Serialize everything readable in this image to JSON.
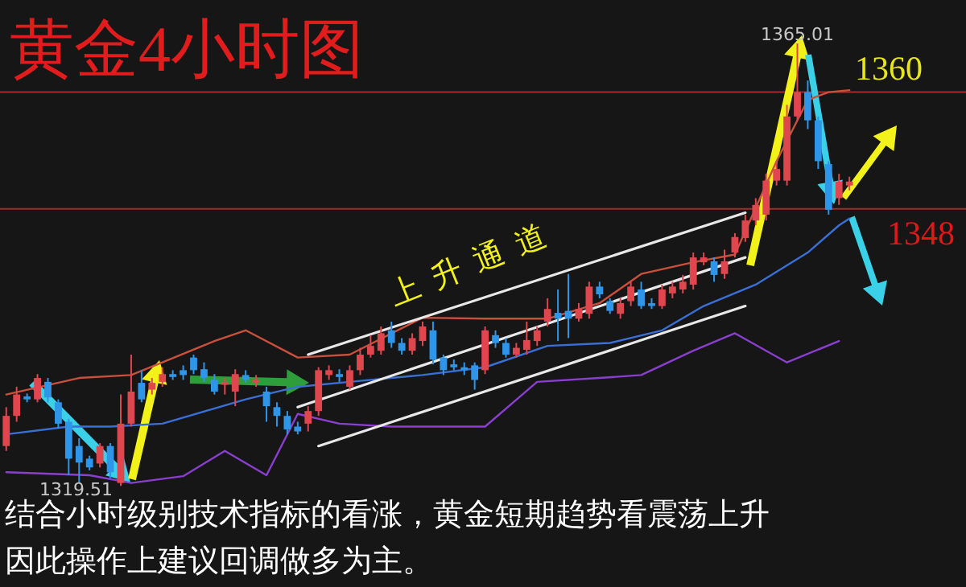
{
  "chart_data": {
    "type": "candlestick",
    "title": "黄金4小时图",
    "categories": [
      null,
      null,
      null,
      null,
      null,
      null,
      null,
      null,
      null,
      null,
      null,
      null,
      null,
      null,
      null,
      null,
      null,
      null,
      null,
      null,
      null,
      null,
      null,
      null,
      null,
      null,
      null,
      null,
      null,
      null,
      null,
      null,
      null,
      null,
      null,
      null,
      null,
      null,
      null,
      null,
      null,
      null,
      null,
      null,
      null,
      null,
      null,
      null,
      null,
      null,
      null,
      null,
      null,
      null,
      null,
      null,
      null,
      null,
      null,
      null,
      null,
      null,
      null,
      null,
      null,
      null,
      null,
      null,
      null,
      null,
      null,
      null,
      null,
      null,
      null,
      null,
      null,
      null,
      null,
      null,
      null,
      null
    ],
    "ohlc": [
      [
        1323.6,
        1327.6,
        1323.1,
        1326.7
      ],
      [
        1326.7,
        1329.7,
        1326.1,
        1328.9
      ],
      [
        1328.7,
        1329.0,
        1328.1,
        1328.4
      ],
      [
        1328.4,
        1331.0,
        1328.1,
        1330.6
      ],
      [
        1330.2,
        1330.6,
        1328.1,
        1328.6
      ],
      [
        1328.1,
        1328.4,
        1325.4,
        1325.9
      ],
      [
        1326.1,
        1326.4,
        1320.6,
        1322.3
      ],
      [
        1323.6,
        1324.4,
        1319.8,
        1321.9
      ],
      [
        1322.3,
        1322.6,
        1321.1,
        1321.4
      ],
      [
        1321.8,
        1323.9,
        1321.4,
        1323.6
      ],
      [
        1323.6,
        1323.9,
        1320.3,
        1320.9
      ],
      [
        1319.8,
        1328.9,
        1319.51,
        1325.9
      ],
      [
        1325.9,
        1333.0,
        1325.6,
        1329.2
      ],
      [
        1330.1,
        1331.4,
        1328.1,
        1328.4
      ],
      [
        1329.4,
        1330.6,
        1328.9,
        1330.1
      ],
      [
        1330.2,
        1331.7,
        1329.7,
        1331.0
      ],
      [
        1331.0,
        1331.4,
        1330.4,
        1330.7
      ],
      [
        1331.4,
        1331.9,
        1330.4,
        1330.9
      ],
      [
        1332.7,
        1333.0,
        1331.0,
        1331.4
      ],
      [
        1331.5,
        1332.2,
        1330.2,
        1330.6
      ],
      [
        1330.4,
        1331.0,
        1328.9,
        1329.2
      ],
      [
        1329.9,
        1330.6,
        1328.9,
        1330.2
      ],
      [
        1329.2,
        1331.5,
        1327.7,
        1331.0
      ],
      [
        1330.9,
        1331.4,
        1330.1,
        1330.4
      ],
      [
        1330.1,
        1330.9,
        1329.7,
        1330.4
      ],
      [
        1329.2,
        1329.7,
        1326.1,
        1327.7
      ],
      [
        1327.6,
        1328.1,
        1325.6,
        1326.7
      ],
      [
        1326.7,
        1327.2,
        1324.8,
        1325.3
      ],
      [
        1325.6,
        1326.1,
        1324.8,
        1325.1
      ],
      [
        1325.9,
        1327.7,
        1325.1,
        1327.2
      ],
      [
        1327.2,
        1331.7,
        1326.7,
        1331.4
      ],
      [
        1330.9,
        1331.9,
        1330.4,
        1331.4
      ],
      [
        1331.0,
        1331.5,
        1330.2,
        1330.7
      ],
      [
        1329.7,
        1331.9,
        1329.4,
        1331.4
      ],
      [
        1331.4,
        1333.7,
        1330.9,
        1333.0
      ],
      [
        1333.0,
        1335.0,
        1332.7,
        1333.9
      ],
      [
        1333.4,
        1335.9,
        1333.0,
        1335.2
      ],
      [
        1335.5,
        1336.4,
        1333.7,
        1334.2
      ],
      [
        1334.2,
        1334.7,
        1333.0,
        1333.4
      ],
      [
        1333.4,
        1335.2,
        1333.0,
        1334.7
      ],
      [
        1334.4,
        1336.4,
        1333.9,
        1335.9
      ],
      [
        1335.5,
        1336.4,
        1332.0,
        1332.5
      ],
      [
        1332.7,
        1333.0,
        1330.9,
        1331.4
      ],
      [
        1332.0,
        1332.5,
        1331.4,
        1331.7
      ],
      [
        1331.7,
        1332.2,
        1330.9,
        1331.4
      ],
      [
        1331.9,
        1332.2,
        1329.4,
        1330.4
      ],
      [
        1331.4,
        1335.9,
        1331.0,
        1335.5
      ],
      [
        1335.0,
        1335.5,
        1333.7,
        1334.2
      ],
      [
        1334.2,
        1334.7,
        1332.7,
        1333.0
      ],
      [
        1333.0,
        1334.2,
        1332.7,
        1333.7
      ],
      [
        1333.5,
        1336.4,
        1333.0,
        1334.5
      ],
      [
        1334.4,
        1335.9,
        1333.9,
        1335.5
      ],
      [
        1336.4,
        1338.8,
        1335.9,
        1337.7
      ],
      [
        1337.3,
        1339.7,
        1334.4,
        1336.7
      ],
      [
        1337.5,
        1341.3,
        1334.7,
        1336.7
      ],
      [
        1336.7,
        1338.3,
        1336.4,
        1337.7
      ],
      [
        1337.2,
        1340.5,
        1336.7,
        1340.0
      ],
      [
        1340.0,
        1340.5,
        1338.8,
        1339.2
      ],
      [
        1338.5,
        1338.8,
        1337.2,
        1337.5
      ],
      [
        1337.2,
        1338.8,
        1336.7,
        1338.3
      ],
      [
        1338.5,
        1340.5,
        1338.0,
        1340.0
      ],
      [
        1339.7,
        1340.5,
        1337.7,
        1338.0
      ],
      [
        1338.3,
        1338.8,
        1337.7,
        1338.0
      ],
      [
        1338.0,
        1340.2,
        1337.7,
        1339.7
      ],
      [
        1339.3,
        1340.5,
        1338.8,
        1340.0
      ],
      [
        1339.7,
        1341.2,
        1339.3,
        1340.5
      ],
      [
        1340.2,
        1343.5,
        1339.7,
        1343.0
      ],
      [
        1342.5,
        1343.5,
        1342.2,
        1343.0
      ],
      [
        1342.6,
        1343.0,
        1340.5,
        1341.2
      ],
      [
        1341.3,
        1343.8,
        1340.8,
        1342.6
      ],
      [
        1343.5,
        1345.5,
        1343.0,
        1345.1
      ],
      [
        1345.0,
        1347.4,
        1344.6,
        1346.8
      ],
      [
        1346.8,
        1349.1,
        1346.3,
        1348.4
      ],
      [
        1347.4,
        1351.6,
        1346.8,
        1350.9
      ],
      [
        1350.9,
        1352.9,
        1350.4,
        1352.1
      ],
      [
        1350.9,
        1358.7,
        1350.4,
        1357.5
      ],
      [
        1357.5,
        1365.01,
        1357.1,
        1360.0
      ],
      [
        1360.0,
        1361.2,
        1356.2,
        1357.1
      ],
      [
        1357.1,
        1357.5,
        1352.1,
        1352.9
      ],
      [
        1352.6,
        1352.9,
        1347.4,
        1347.9
      ],
      [
        1349.1,
        1351.6,
        1348.4,
        1350.8
      ],
      [
        1350.4,
        1351.3,
        1349.9,
        1350.8
      ]
    ],
    "series": [
      {
        "type": "line",
        "color": "#c8503c",
        "values": [
          1328.9,
          null,
          null,
          null,
          null,
          null,
          null,
          1330.6,
          null,
          null,
          null,
          null,
          1330.9,
          null,
          null,
          1332.2,
          null,
          null,
          null,
          null,
          1334.4,
          null,
          null,
          1335.5,
          null,
          null,
          null,
          null,
          1332.7,
          null,
          null,
          null,
          null,
          1333.0,
          null,
          null,
          null,
          null,
          null,
          null,
          1336.8,
          null,
          null,
          null,
          null,
          null,
          1336.7,
          null,
          null,
          null,
          null,
          null,
          1336.7,
          null,
          null,
          null,
          null,
          1338.3,
          null,
          null,
          null,
          1341.3,
          null,
          null,
          null,
          null,
          1342.5,
          null,
          null,
          null,
          1343.3,
          null,
          null,
          null,
          1352.9,
          null,
          null,
          1359.2,
          null,
          1360.0,
          null,
          1360.2
        ]
      },
      {
        "type": "line",
        "color": "#3b6fd8",
        "values": [
          1324.8,
          null,
          null,
          null,
          null,
          null,
          1325.6,
          null,
          null,
          null,
          1325.6,
          null,
          null,
          null,
          null,
          1325.9,
          null,
          null,
          null,
          null,
          null,
          null,
          null,
          1328.4,
          null,
          null,
          null,
          null,
          1329.7,
          null,
          null,
          null,
          null,
          1330.2,
          null,
          null,
          null,
          null,
          null,
          null,
          1330.9,
          null,
          null,
          null,
          null,
          null,
          1331.7,
          null,
          null,
          null,
          null,
          null,
          1333.9,
          null,
          null,
          null,
          null,
          null,
          1334.2,
          null,
          null,
          null,
          null,
          1335.5,
          null,
          null,
          null,
          1338.0,
          null,
          null,
          null,
          null,
          1340.2,
          null,
          null,
          null,
          null,
          1343.5,
          null,
          null,
          1346.3,
          1347.0
        ]
      },
      {
        "type": "line",
        "color": "#8a3fd1",
        "values": [
          1320.9,
          null,
          null,
          null,
          null,
          null,
          null,
          null,
          1320.6,
          null,
          null,
          null,
          1319.8,
          null,
          null,
          null,
          null,
          1320.5,
          null,
          null,
          null,
          1323.1,
          null,
          null,
          null,
          1320.6,
          null,
          null,
          1326.9,
          null,
          null,
          null,
          1325.9,
          null,
          null,
          null,
          null,
          1325.6,
          null,
          null,
          null,
          null,
          null,
          null,
          null,
          null,
          1325.6,
          null,
          null,
          null,
          null,
          1330.2,
          null,
          null,
          null,
          null,
          null,
          1330.6,
          null,
          null,
          null,
          1330.9,
          null,
          null,
          null,
          null,
          1333.4,
          null,
          null,
          null,
          1335.2,
          null,
          null,
          null,
          null,
          1332.2,
          null,
          null,
          null,
          null,
          1334.4,
          null
        ]
      },
      {
        "type": "line",
        "color": "#e8e8e8",
        "values": [
          null,
          null,
          null,
          null,
          null,
          null,
          null,
          null,
          null,
          null,
          null,
          null,
          null,
          null,
          null,
          null,
          null,
          null,
          null,
          null,
          null,
          null,
          null,
          null,
          null,
          null,
          null,
          null,
          null,
          1333.0,
          null,
          null,
          null,
          null,
          null,
          null,
          null,
          null,
          null,
          null,
          null,
          null,
          null,
          null,
          null,
          null,
          null,
          null,
          null,
          null,
          null,
          null,
          null,
          null,
          null,
          null,
          null,
          null,
          null,
          null,
          null,
          null,
          null,
          null,
          null,
          null,
          null,
          null,
          null,
          null,
          null,
          1347.6,
          null,
          null,
          null,
          null,
          null,
          null,
          null,
          null,
          null,
          null
        ]
      },
      {
        "type": "line",
        "color": "#e8e8e8",
        "values": [
          null,
          null,
          null,
          null,
          null,
          null,
          null,
          null,
          null,
          null,
          null,
          null,
          null,
          null,
          null,
          null,
          null,
          null,
          null,
          null,
          null,
          null,
          null,
          null,
          null,
          null,
          null,
          null,
          1327.6,
          null,
          null,
          null,
          null,
          null,
          null,
          null,
          null,
          null,
          null,
          null,
          null,
          null,
          null,
          null,
          null,
          null,
          null,
          null,
          null,
          null,
          null,
          null,
          null,
          null,
          null,
          null,
          null,
          null,
          null,
          null,
          null,
          null,
          null,
          null,
          null,
          null,
          null,
          null,
          null,
          null,
          null,
          1343.0,
          null,
          null,
          null,
          null,
          null,
          null,
          null,
          null,
          null,
          null
        ]
      },
      {
        "type": "line",
        "color": "#e8e8e8",
        "values": [
          null,
          null,
          null,
          null,
          null,
          null,
          null,
          null,
          null,
          null,
          null,
          null,
          null,
          null,
          null,
          null,
          null,
          null,
          null,
          null,
          null,
          null,
          null,
          null,
          null,
          null,
          null,
          null,
          null,
          null,
          1323.6,
          null,
          null,
          null,
          null,
          null,
          null,
          null,
          null,
          null,
          null,
          null,
          null,
          null,
          null,
          null,
          null,
          null,
          null,
          null,
          null,
          null,
          null,
          null,
          null,
          null,
          null,
          null,
          null,
          null,
          null,
          null,
          null,
          null,
          null,
          null,
          null,
          null,
          null,
          null,
          null,
          1338.0,
          null,
          null,
          null,
          null,
          null,
          null,
          null,
          null,
          null,
          null
        ]
      }
    ],
    "ref_lines": [
      {
        "axis": "y",
        "value": 1360,
        "label": "1360",
        "color": "#a52a2a"
      },
      {
        "axis": "y",
        "value": 1348,
        "label": "1348",
        "color": "#a52a2a"
      }
    ],
    "annotations": [
      "上升通道",
      {
        "text": "1365.01",
        "y": 1365.01
      },
      {
        "text": "1319.51",
        "y": 1319.51
      },
      "结合小时级别技术指标的看涨，黄金短期趋势看震荡上升",
      "因此操作上建议回调做多为主。"
    ]
  }
}
